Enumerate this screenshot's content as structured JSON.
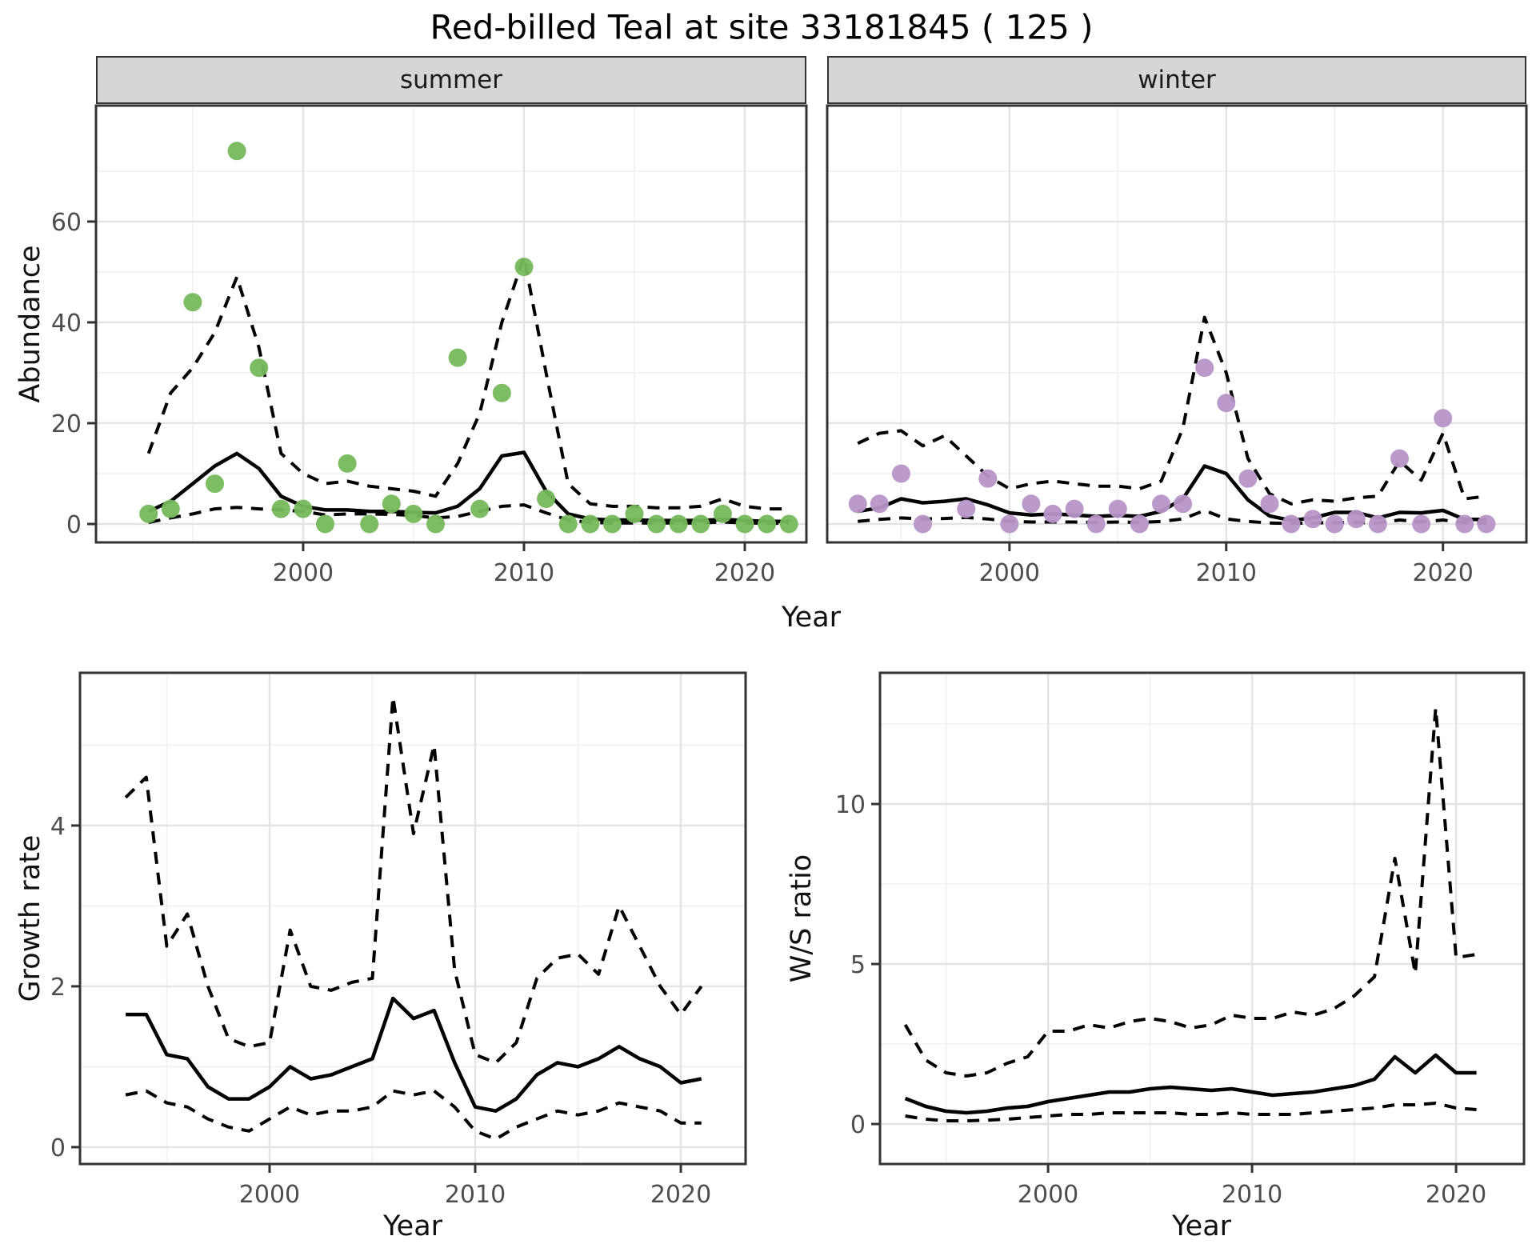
{
  "title": "Red-billed Teal at site 33181845 ( 125 )",
  "facets": {
    "summer": "summer",
    "winter": "winter"
  },
  "axis_titles": {
    "y_abundance": "Abundance",
    "y_growth": "Growth rate",
    "y_ws": "W/S ratio",
    "x_year_top": "Year",
    "x_year_growth": "Year",
    "x_year_ws": "Year"
  },
  "colors": {
    "summer_points": "#75b85a",
    "winter_points": "#b795c8",
    "line": "#000000",
    "grid_major": "#e3e3e3",
    "grid_minor": "#f0f0f0",
    "panel_border": "#333333",
    "strip_bg": "#d6d6d6",
    "axis_text": "#4d4d4d"
  },
  "chart_data": [
    {
      "id": "ab_summer",
      "type": "scatter",
      "title": "summer",
      "xlabel": "Year",
      "ylabel": "Abundance",
      "x": [
        1993,
        1994,
        1995,
        1996,
        1997,
        1998,
        1999,
        2000,
        2001,
        2002,
        2003,
        2004,
        2005,
        2006,
        2007,
        2008,
        2009,
        2010,
        2011,
        2012,
        2013,
        2014,
        2015,
        2016,
        2017,
        2018,
        2019,
        2020,
        2021,
        2022
      ],
      "points": [
        2,
        3,
        44,
        8,
        74,
        31,
        3,
        3,
        0,
        12,
        0,
        4,
        2,
        0,
        33,
        3,
        26,
        51,
        5,
        0,
        0,
        0,
        2,
        0,
        0,
        0,
        2,
        0,
        0,
        0
      ],
      "series": [
        {
          "name": "lower_ci",
          "style": "dashed",
          "values": [
            0.3,
            1.2,
            2,
            3,
            3.3,
            3,
            2.8,
            2.5,
            1.8,
            2,
            2,
            1.9,
            1.7,
            1.2,
            1.5,
            2.5,
            3.5,
            3.8,
            2.2,
            0.8,
            0.3,
            0.2,
            0.2,
            0.2,
            0.2,
            0.2,
            0.4,
            0.2,
            0.15,
            0.15
          ]
        },
        {
          "name": "upper_ci",
          "style": "dashed",
          "values": [
            14,
            26,
            31,
            38,
            49,
            35,
            14,
            10,
            8,
            8.5,
            7.5,
            7,
            6.5,
            5.5,
            12,
            22,
            40,
            53,
            30,
            8,
            4,
            3.5,
            3.5,
            3.2,
            3.2,
            3.5,
            5,
            3.5,
            3,
            3
          ]
        },
        {
          "name": "fit",
          "style": "solid",
          "values": [
            2.5,
            4.5,
            8,
            11.5,
            14,
            11,
            5.5,
            3.5,
            2.8,
            2.8,
            2.5,
            2.5,
            2.3,
            2.2,
            3.5,
            7,
            13.5,
            14.2,
            6.5,
            2,
            1,
            0.8,
            0.8,
            0.7,
            0.7,
            0.7,
            0.9,
            0.7,
            0.5,
            0.5
          ]
        }
      ],
      "point_color": "#75b85a",
      "xlim": [
        1990.62,
        2022.79
      ],
      "ylim": [
        -3.65,
        83.0
      ],
      "x_ticks": [
        2000,
        2010,
        2020
      ],
      "x_minor": [
        1995,
        2005,
        2015
      ],
      "y_ticks": [
        0,
        20,
        40,
        60
      ],
      "y_minor": [
        10,
        30,
        50,
        70
      ]
    },
    {
      "id": "ab_winter",
      "type": "scatter",
      "title": "winter",
      "xlabel": "Year",
      "ylabel": "Abundance",
      "x": [
        1993,
        1994,
        1995,
        1996,
        1997,
        1998,
        1999,
        2000,
        2001,
        2002,
        2003,
        2004,
        2005,
        2006,
        2007,
        2008,
        2009,
        2010,
        2011,
        2012,
        2013,
        2014,
        2015,
        2016,
        2017,
        2018,
        2019,
        2020,
        2021,
        2022
      ],
      "points": [
        4,
        4,
        10,
        0,
        null,
        3,
        9,
        0,
        4,
        2,
        3,
        0,
        3,
        0,
        4,
        4,
        31,
        24,
        9,
        4,
        0,
        1,
        0,
        1,
        0,
        13,
        0,
        21,
        0,
        0
      ],
      "series": [
        {
          "name": "lower_ci",
          "style": "dashed",
          "values": [
            0.5,
            0.9,
            1.2,
            1,
            1.1,
            1.3,
            1,
            0.5,
            0.4,
            0.4,
            0.4,
            0.3,
            0.4,
            0.3,
            0.5,
            1,
            2.7,
            1,
            0.5,
            0.2,
            0.1,
            0.2,
            0.3,
            0.3,
            0.2,
            0.8,
            0.4,
            0.8,
            0.2,
            0.2
          ]
        },
        {
          "name": "upper_ci",
          "style": "dashed",
          "values": [
            16,
            18,
            18.5,
            15.5,
            17.5,
            13.5,
            9.5,
            7,
            8,
            8.5,
            8,
            7.5,
            7.5,
            7,
            8.5,
            19,
            41,
            30,
            13,
            6,
            4,
            4.8,
            4.5,
            5.2,
            5.5,
            12.5,
            8.7,
            18,
            5,
            5.5
          ]
        },
        {
          "name": "fit",
          "style": "solid",
          "values": [
            2.5,
            3.2,
            5,
            4.2,
            4.5,
            5,
            3.8,
            2.2,
            1.8,
            2,
            1.8,
            1.5,
            1.7,
            1.5,
            2.5,
            5,
            11.5,
            10,
            4.8,
            1.6,
            0.7,
            1.2,
            2.3,
            2.3,
            1.2,
            2.3,
            2.2,
            2.7,
            0.9,
            0.9
          ]
        }
      ],
      "point_color": "#b795c8",
      "xlim": [
        1991.59,
        2023.85
      ],
      "ylim": [
        -3.65,
        83.0
      ],
      "x_ticks": [
        2000,
        2010,
        2020
      ],
      "x_minor": [
        1995,
        2005,
        2015
      ],
      "y_ticks": [
        0,
        20,
        40,
        60
      ],
      "y_minor": [
        10,
        30,
        50,
        70
      ]
    },
    {
      "id": "growth",
      "type": "line",
      "title": "Growth rate",
      "xlabel": "Year",
      "ylabel": "Growth rate",
      "x": [
        1993,
        1994,
        1995,
        1996,
        1997,
        1998,
        1999,
        2000,
        2001,
        2002,
        2003,
        2004,
        2005,
        2006,
        2007,
        2008,
        2009,
        2010,
        2011,
        2012,
        2013,
        2014,
        2015,
        2016,
        2017,
        2018,
        2019,
        2020,
        2021
      ],
      "series": [
        {
          "name": "lower_ci",
          "style": "dashed",
          "values": [
            0.65,
            0.7,
            0.55,
            0.5,
            0.35,
            0.25,
            0.2,
            0.35,
            0.5,
            0.4,
            0.45,
            0.45,
            0.5,
            0.7,
            0.65,
            0.7,
            0.5,
            0.2,
            0.1,
            0.25,
            0.35,
            0.45,
            0.4,
            0.45,
            0.55,
            0.5,
            0.45,
            0.3,
            0.3
          ]
        },
        {
          "name": "upper_ci",
          "style": "dashed",
          "values": [
            4.35,
            4.6,
            2.5,
            2.9,
            2.0,
            1.35,
            1.25,
            1.3,
            2.7,
            2.0,
            1.95,
            2.05,
            2.1,
            5.6,
            3.9,
            5.0,
            2.2,
            1.15,
            1.05,
            1.3,
            2.1,
            2.35,
            2.4,
            2.15,
            3.0,
            2.5,
            2.0,
            1.65,
            2.0
          ]
        },
        {
          "name": "fit",
          "style": "solid",
          "values": [
            1.65,
            1.65,
            1.15,
            1.1,
            0.75,
            0.6,
            0.6,
            0.75,
            1.0,
            0.85,
            0.9,
            1.0,
            1.1,
            1.85,
            1.6,
            1.7,
            1.05,
            0.5,
            0.45,
            0.6,
            0.9,
            1.05,
            1.0,
            1.1,
            1.25,
            1.1,
            1.0,
            0.8,
            0.85
          ]
        }
      ],
      "xlim": [
        1990.78,
        2023.15
      ],
      "ylim": [
        -0.21,
        5.9
      ],
      "x_ticks": [
        2000,
        2010,
        2020
      ],
      "x_minor": [
        1995,
        2005,
        2015
      ],
      "y_ticks": [
        0,
        2,
        4
      ],
      "y_minor": [
        1,
        3,
        5
      ]
    },
    {
      "id": "ws",
      "type": "line",
      "title": "W/S ratio",
      "xlabel": "Year",
      "ylabel": "W/S ratio",
      "x": [
        1993,
        1994,
        1995,
        1996,
        1997,
        1998,
        1999,
        2000,
        2001,
        2002,
        2003,
        2004,
        2005,
        2006,
        2007,
        2008,
        2009,
        2010,
        2011,
        2012,
        2013,
        2014,
        2015,
        2016,
        2017,
        2018,
        2019,
        2020,
        2021
      ],
      "series": [
        {
          "name": "lower_ci",
          "style": "dashed",
          "values": [
            0.25,
            0.15,
            0.1,
            0.1,
            0.12,
            0.15,
            0.2,
            0.25,
            0.3,
            0.3,
            0.35,
            0.35,
            0.35,
            0.35,
            0.3,
            0.3,
            0.35,
            0.3,
            0.3,
            0.3,
            0.35,
            0.4,
            0.45,
            0.5,
            0.6,
            0.6,
            0.65,
            0.5,
            0.45
          ]
        },
        {
          "name": "upper_ci",
          "style": "dashed",
          "values": [
            3.1,
            2.0,
            1.6,
            1.5,
            1.6,
            1.9,
            2.1,
            2.9,
            2.9,
            3.1,
            3.0,
            3.2,
            3.3,
            3.2,
            3.0,
            3.1,
            3.4,
            3.3,
            3.3,
            3.5,
            3.4,
            3.6,
            4.0,
            4.6,
            8.3,
            4.7,
            13.0,
            5.2,
            5.3
          ]
        },
        {
          "name": "fit",
          "style": "solid",
          "values": [
            0.8,
            0.55,
            0.4,
            0.35,
            0.4,
            0.5,
            0.55,
            0.7,
            0.8,
            0.9,
            1.0,
            1.0,
            1.1,
            1.15,
            1.1,
            1.05,
            1.1,
            1.0,
            0.9,
            0.95,
            1.0,
            1.1,
            1.2,
            1.4,
            2.1,
            1.6,
            2.15,
            1.6,
            1.6
          ]
        }
      ],
      "xlim": [
        1991.76,
        2023.33
      ],
      "ylim": [
        -1.25,
        14.1
      ],
      "x_ticks": [
        2000,
        2010,
        2020
      ],
      "x_minor": [
        1995,
        2005,
        2015
      ],
      "y_ticks": [
        0,
        5,
        10
      ],
      "y_minor": [
        2.5,
        7.5,
        12.5
      ]
    }
  ]
}
